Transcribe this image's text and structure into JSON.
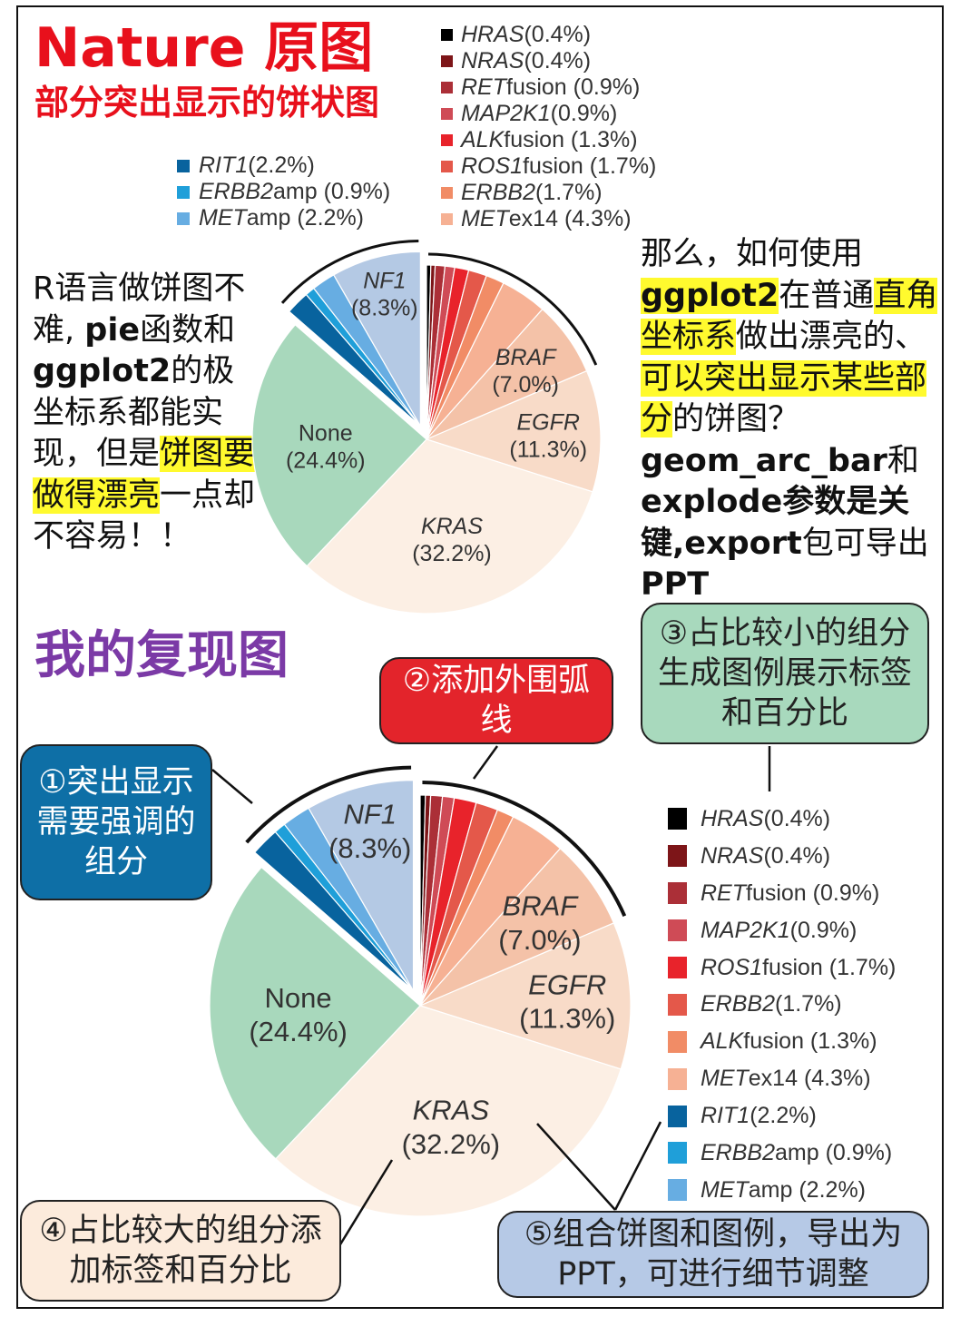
{
  "header": {
    "nature_title": "Nature 原图",
    "nature_subtitle": "部分突出显示的饼状图",
    "mine_title": "我的复现图"
  },
  "left_text": {
    "t1": "R语言做饼图不难, ",
    "t2": "pie",
    "t3": "函数和",
    "t4": "ggplot2",
    "t5": "的极坐标系都能实现，但是",
    "t6": "饼图要做得漂亮",
    "t7": "一点却不容易！！"
  },
  "right_text": {
    "t1": "那么，如何使用",
    "t2": "ggplot2",
    "t3": "在普通",
    "t4": "直角坐标系",
    "t5": "做出漂亮的、",
    "t6": "可以突出显示某些部分",
    "t7": "的饼图？",
    "t8": "geom_arc_bar",
    "t9": "和",
    "t10": "explode",
    "t11": "参数是关键,",
    "t12": "export",
    "t13": "包可导出",
    "t14": "PPT"
  },
  "callouts": {
    "c1": "①突出显示需要强调的组分",
    "c2": "②添加外围弧线",
    "c3": "③占比较小的组分生成图例展示标签和百分比",
    "c4": "④占比较大的组分添加标签和百分比",
    "c5": "⑤组合饼图和图例，导出为PPT，可进行细节调整"
  },
  "top_legend_left": [
    {
      "gene": "RIT1",
      "suffix": " (2.2%)",
      "color": "#08639e"
    },
    {
      "gene": "ERBB2",
      "suffix": " amp (0.9%)",
      "color": "#1f9fd9"
    },
    {
      "gene": "MET",
      "suffix": " amp (2.2%)",
      "color": "#67ade2"
    }
  ],
  "top_legend_right": [
    {
      "gene": "HRAS",
      "suffix": " (0.4%)",
      "color": "#000000"
    },
    {
      "gene": "NRAS",
      "suffix": " (0.4%)",
      "color": "#7d1518"
    },
    {
      "gene": "RET",
      "suffix": " fusion (0.9%)",
      "color": "#ab2f37"
    },
    {
      "gene": "MAP2K1",
      "suffix": " (0.9%)",
      "color": "#cf4b56"
    },
    {
      "gene": "ALK",
      "suffix": " fusion (1.3%)",
      "color": "#e8232b"
    },
    {
      "gene": "ROS1",
      "suffix": " fusion (1.7%)",
      "color": "#e4584a"
    },
    {
      "gene": "ERBB2",
      "suffix": " (1.7%)",
      "color": "#f18c66"
    },
    {
      "gene": "MET",
      "suffix": " ex14 (4.3%)",
      "color": "#f6b194"
    }
  ],
  "bottom_legend": [
    {
      "gene": "HRAS",
      "suffix": " (0.4%)",
      "color": "#000000"
    },
    {
      "gene": "NRAS",
      "suffix": " (0.4%)",
      "color": "#7d1518"
    },
    {
      "gene": "RET",
      "suffix": " fusion (0.9%)",
      "color": "#ab2f37"
    },
    {
      "gene": "MAP2K1",
      "suffix": " (0.9%)",
      "color": "#cf4b56"
    },
    {
      "gene": "ROS1",
      "suffix": " fusion (1.7%)",
      "color": "#e8232b"
    },
    {
      "gene": "ERBB2",
      "suffix": " (1.7%)",
      "color": "#e4584a"
    },
    {
      "gene": "ALK",
      "suffix": " fusion (1.3%)",
      "color": "#f18c66"
    },
    {
      "gene": "MET",
      "suffix": " ex14 (4.3%)",
      "color": "#f6b194"
    },
    {
      "gene": "RIT1",
      "suffix": " (2.2%)",
      "color": "#08639e"
    },
    {
      "gene": "ERBB2",
      "suffix": " amp (0.9%)",
      "color": "#1f9fd9"
    },
    {
      "gene": "MET",
      "suffix": " amp (2.2%)",
      "color": "#67ade2"
    }
  ],
  "chart_data": [
    {
      "type": "pie",
      "title": "",
      "start": "12 o'clock",
      "direction": "clockwise",
      "exploded": [
        "RIT1",
        "ERBB2 amp",
        "MET amp",
        "NF1"
      ],
      "outer_arcs": [
        "HRAS-BRAF",
        "RIT1-NF1"
      ],
      "slices": [
        {
          "label": "HRAS",
          "value": 0.4,
          "color": "#000000",
          "italic": true
        },
        {
          "label": "NRAS",
          "value": 0.4,
          "color": "#7d1518",
          "italic": true
        },
        {
          "label": "RET fusion",
          "value": 0.9,
          "color": "#ab2f37"
        },
        {
          "label": "MAP2K1",
          "value": 0.9,
          "color": "#cf4b56",
          "italic": true
        },
        {
          "label": "ALK fusion",
          "value": 1.3,
          "color": "#e8232b"
        },
        {
          "label": "ROS1 fusion",
          "value": 1.7,
          "color": "#e4584a"
        },
        {
          "label": "ERBB2",
          "value": 1.7,
          "color": "#f18c66",
          "italic": true
        },
        {
          "label": "MET ex14",
          "value": 4.3,
          "color": "#f6b194"
        },
        {
          "label": "BRAF",
          "value": 7.0,
          "color": "#f4c2a8",
          "name": "BRAF",
          "pct": "(7.0%)"
        },
        {
          "label": "EGFR",
          "value": 11.3,
          "color": "#f8dbc8",
          "name": "EGFR",
          "pct": "(11.3%)"
        },
        {
          "label": "KRAS",
          "value": 32.2,
          "color": "#fcefe4",
          "name": "KRAS",
          "pct": "(32.2%)"
        },
        {
          "label": "None",
          "value": 24.4,
          "color": "#a8d8bc",
          "name": "None",
          "pct": "(24.4%)"
        },
        {
          "label": "RIT1",
          "value": 2.2,
          "color": "#08639e",
          "italic": true
        },
        {
          "label": "ERBB2 amp",
          "value": 0.9,
          "color": "#1f9fd9"
        },
        {
          "label": "MET amp",
          "value": 2.2,
          "color": "#67ade2"
        },
        {
          "label": "NF1",
          "value": 8.3,
          "color": "#b4c9e4",
          "name": "NF1",
          "pct": "(8.3%)"
        }
      ]
    },
    {
      "type": "pie",
      "title": "",
      "start": "12 o'clock",
      "direction": "clockwise",
      "exploded": [
        "RIT1",
        "ERBB2 amp",
        "MET amp",
        "NF1"
      ],
      "outer_arcs": [
        "HRAS-BRAF",
        "RIT1-NF1"
      ],
      "slices": [
        {
          "label": "HRAS",
          "value": 0.4,
          "color": "#000000"
        },
        {
          "label": "NRAS",
          "value": 0.4,
          "color": "#7d1518"
        },
        {
          "label": "RET fusion",
          "value": 0.9,
          "color": "#ab2f37"
        },
        {
          "label": "MAP2K1",
          "value": 0.9,
          "color": "#cf4b56"
        },
        {
          "label": "ROS1 fusion",
          "value": 1.7,
          "color": "#e8232b"
        },
        {
          "label": "ERBB2",
          "value": 1.7,
          "color": "#e4584a"
        },
        {
          "label": "ALK fusion",
          "value": 1.3,
          "color": "#f18c66"
        },
        {
          "label": "MET ex14",
          "value": 4.3,
          "color": "#f6b194"
        },
        {
          "label": "BRAF",
          "value": 7.0,
          "color": "#f4c2a8",
          "name": "BRAF",
          "pct": "(7.0%)"
        },
        {
          "label": "EGFR",
          "value": 11.3,
          "color": "#f8dbc8",
          "name": "EGFR",
          "pct": "(11.3%)"
        },
        {
          "label": "KRAS",
          "value": 32.2,
          "color": "#fcefe4",
          "name": "KRAS",
          "pct": "(32.2%)"
        },
        {
          "label": "None",
          "value": 24.4,
          "color": "#a8d8bc",
          "name": "None",
          "pct": "(24.4%)"
        },
        {
          "label": "RIT1",
          "value": 2.2,
          "color": "#08639e"
        },
        {
          "label": "ERBB2 amp",
          "value": 0.9,
          "color": "#1f9fd9"
        },
        {
          "label": "MET amp",
          "value": 2.2,
          "color": "#67ade2"
        },
        {
          "label": "NF1",
          "value": 8.3,
          "color": "#b4c9e4",
          "name": "NF1",
          "pct": "(8.3%)"
        }
      ]
    }
  ]
}
